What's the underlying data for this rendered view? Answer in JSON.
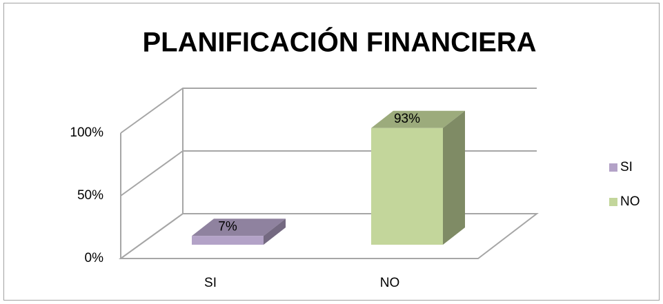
{
  "chart_data": {
    "type": "bar",
    "title": "PLANIFICACIÓN FINANCIERA",
    "categories": [
      "SI",
      "NO"
    ],
    "series": [
      {
        "name": "SI",
        "color": "#b3a2c7",
        "values": [
          7,
          null
        ],
        "value_labels": [
          "7%",
          null
        ]
      },
      {
        "name": "NO",
        "color": "#c3d69b",
        "values": [
          null,
          93
        ],
        "value_labels": [
          null,
          "93%"
        ]
      }
    ],
    "ylim": [
      0,
      100
    ],
    "yticks": [
      {
        "value": 0,
        "label": "0%"
      },
      {
        "value": 50,
        "label": "50%"
      },
      {
        "value": 100,
        "label": "100%"
      }
    ],
    "grid": true,
    "legend": "right"
  }
}
